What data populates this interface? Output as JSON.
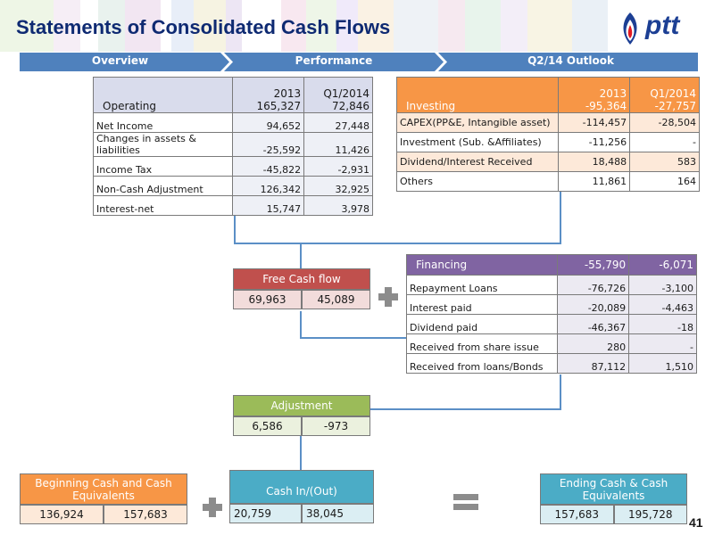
{
  "title": "Statements of Consolidated Cash Flows",
  "logo_text": "ptt",
  "nav": [
    "Overview",
    "Performance",
    "Q2/14 Outlook"
  ],
  "operating": {
    "header": {
      "label": "Operating",
      "col1": "2013\n165,327",
      "col2": "Q1/2014\n72,846"
    },
    "rows": [
      {
        "label": "Net Income",
        "v1": "94,652",
        "v2": "27,448"
      },
      {
        "label": "Changes in assets & liabilities",
        "v1": "-25,592",
        "v2": "11,426"
      },
      {
        "label": "Income Tax",
        "v1": "-45,822",
        "v2": "-2,931"
      },
      {
        "label": "Non-Cash  Adjustment",
        "v1": "126,342",
        "v2": "32,925"
      },
      {
        "label": "Interest-net",
        "v1": "15,747",
        "v2": "3,978"
      }
    ]
  },
  "investing": {
    "header": {
      "label": "Investing",
      "col1": "2013\n-95,364",
      "col2": "Q1/2014\n-27,757"
    },
    "rows": [
      {
        "label": "CAPEX(PP&E, Intangible asset)",
        "v1": "-114,457",
        "v2": "-28,504"
      },
      {
        "label": "Investment (Sub. &Affiliates)",
        "v1": "-11,256",
        "v2": "-"
      },
      {
        "label": "Dividend/Interest Received",
        "v1": "18,488",
        "v2": "583"
      },
      {
        "label": "Others",
        "v1": "11,861",
        "v2": "164"
      }
    ]
  },
  "financing": {
    "header": {
      "label": "Financing",
      "col1": "-55,790",
      "col2": "-6,071"
    },
    "rows": [
      {
        "label": "Repayment  Loans",
        "v1": "-76,726",
        "v2": "-3,100"
      },
      {
        "label": "Interest paid",
        "v1": "-20,089",
        "v2": "-4,463"
      },
      {
        "label": "Dividend paid",
        "v1": "-46,367",
        "v2": "-18"
      },
      {
        "label": "Received from share issue",
        "v1": "280",
        "v2": "-"
      },
      {
        "label": "Received from loans/Bonds",
        "v1": "87,112",
        "v2": "1,510"
      }
    ]
  },
  "free_cash_flow": {
    "label": "Free Cash flow",
    "v1": "69,963",
    "v2": "45,089"
  },
  "adjustment": {
    "label": "Adjustment",
    "v1": "6,586",
    "v2": "-973"
  },
  "beginning_cash": {
    "label": "Beginning Cash and Cash Equivalents",
    "v1": "136,924",
    "v2": "157,683"
  },
  "cash_in_out": {
    "label": "Cash In/(Out)",
    "v1": "20,759",
    "v2": "38,045"
  },
  "ending_cash": {
    "label": "Ending Cash & Cash Equivalents",
    "v1": "157,683",
    "v2": "195,728"
  },
  "page_number": "41",
  "colors": {
    "title": "#0e2a72",
    "nav": "#4f81bd",
    "operating_head": "#d9dcec",
    "investing_head": "#f79646",
    "financing_head": "#8064a2",
    "free_cash_flow": "#c0504d",
    "adjustment": "#9bbb59",
    "beginning_cash": "#f79646",
    "cash_in_out": "#4bacc6",
    "ending_cash": "#4bacc6",
    "connector": "#5b8fc6"
  },
  "icons": [
    "ptt-flame-logo-icon",
    "plus-icon",
    "equals-icon"
  ]
}
